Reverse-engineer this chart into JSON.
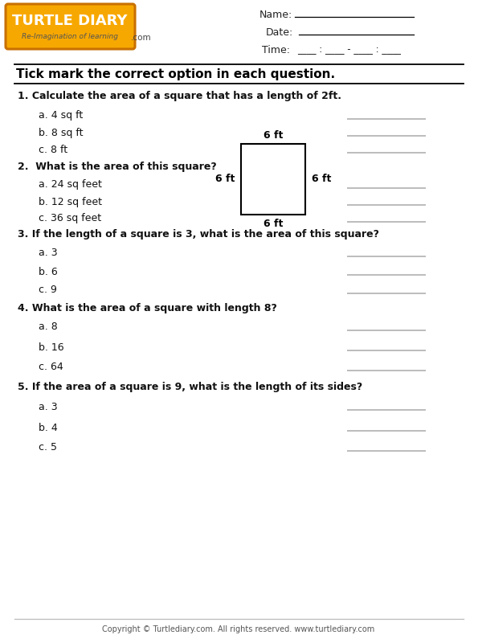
{
  "bg_color": "#ffffff",
  "footer": "Copyright © Turtlediary.com. All rights reserved. www.turtlediary.com",
  "line_color": "#999999",
  "logo_bg": "#F7A800",
  "logo_border": "#C87000",
  "logo_text": "TURTLE DIARY",
  "logo_tagline": "Re-Imagination of learning",
  "logo_dotcom": ".com",
  "header_labels": [
    "Name:",
    "Date:",
    "Time:"
  ],
  "time_str": "____ : ____ - ____ : ____",
  "section_title": "Tick mark the correct option in each question.",
  "q1_text": "1. Calculate the area of a square that has a length of 2ft.",
  "q1_opts": [
    "a. 4 sq ft",
    "b. 8 sq ft",
    "c. 8 ft"
  ],
  "q2_text": "2.  What is the area of this square?",
  "q2_opts": [
    "a. 24 sq feet",
    "b. 12 sq feet",
    "c. 36 sq feet"
  ],
  "q3_text": "3. If the length of a square is 3, what is the area of this square?",
  "q3_opts": [
    "a. 3",
    "b. 6",
    "c. 9"
  ],
  "q4_text": "4. What is the area of a square with length 8?",
  "q4_opts": [
    "a. 8",
    "b. 16",
    "c. 64"
  ],
  "q5_text": "5. If the area of a square is 9, what is the length of its sides?",
  "q5_opts": [
    "a. 3",
    "b. 4",
    "c. 5"
  ],
  "sq_labels": [
    "6 ft",
    "6 ft",
    "6 ft",
    "6 ft"
  ]
}
